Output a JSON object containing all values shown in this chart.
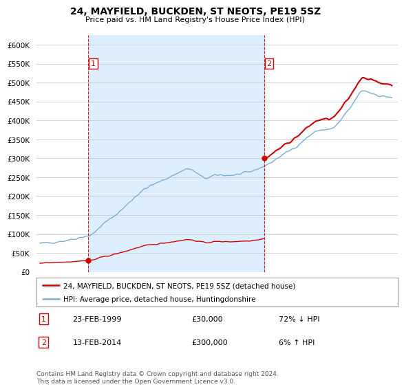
{
  "title": "24, MAYFIELD, BUCKDEN, ST NEOTS, PE19 5SZ",
  "subtitle": "Price paid vs. HM Land Registry's House Price Index (HPI)",
  "ytick_values": [
    0,
    50000,
    100000,
    150000,
    200000,
    250000,
    300000,
    350000,
    400000,
    450000,
    500000,
    550000,
    600000
  ],
  "ylim": [
    0,
    625000
  ],
  "xlim_start": 1994.7,
  "xlim_end": 2025.5,
  "legend_line1": "24, MAYFIELD, BUCKDEN, ST NEOTS, PE19 5SZ (detached house)",
  "legend_line2": "HPI: Average price, detached house, Huntingdonshire",
  "sale1_x": 1999.13,
  "sale1_y": 30000,
  "sale2_x": 2014.12,
  "sale2_y": 300000,
  "vline1_x": 1999.13,
  "vline2_x": 2014.12,
  "property_color": "#cc0000",
  "hpi_color": "#7dadd4",
  "vline_color": "#cc0000",
  "shade_color": "#ddeeff",
  "background_color": "#ffffff",
  "grid_color": "#cccccc",
  "footer": "Contains HM Land Registry data © Crown copyright and database right 2024.\nThis data is licensed under the Open Government Licence v3.0."
}
